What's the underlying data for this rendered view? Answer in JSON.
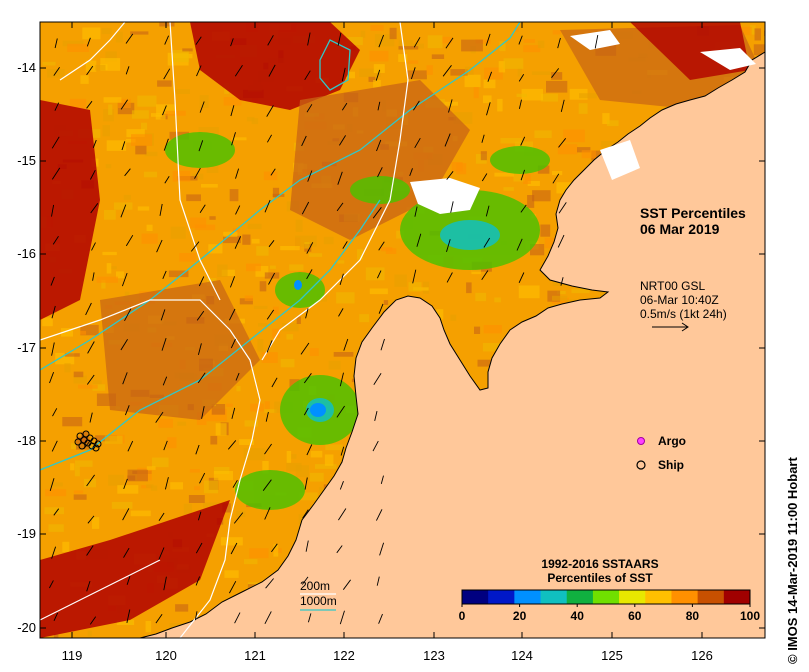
{
  "axes": {
    "lon_ticks": [
      "119",
      "120",
      "121",
      "122",
      "123",
      "124",
      "125",
      "126"
    ],
    "lat_ticks": [
      "-14",
      "-15",
      "-16",
      "-17",
      "-18",
      "-19",
      "-20"
    ]
  },
  "title": {
    "line1": "SST Percentiles",
    "line2": "06 Mar 2019"
  },
  "wind_info": {
    "line1": "NRT00 GSL",
    "line2": "06-Mar 10:40Z",
    "line3": "0.5m/s (1kt 24h)"
  },
  "markers": {
    "argo_label": "Argo",
    "ship_label": "Ship"
  },
  "contours": {
    "c200_label": "200m",
    "c1000_label": "1000m"
  },
  "colorbar": {
    "title_line1": "1992-2016 SSTAARS",
    "title_line2": "Percentiles of SST",
    "tick_labels": [
      "0",
      "20",
      "40",
      "60",
      "80",
      "100"
    ],
    "colors": [
      "#000080",
      "#0018c8",
      "#0090ff",
      "#10c0c0",
      "#10b040",
      "#70e000",
      "#e8e800",
      "#ffc000",
      "#ff9000",
      "#c85000",
      "#a00000"
    ]
  },
  "credit": "© IMOS 14-Mar-2019 11:00 Hobart",
  "colors": {
    "land": "#ffc89a",
    "ocean_base": "#f5a000",
    "warm_dark": "#b00000",
    "brown": "#c86414",
    "contour_200": "#30c8c8",
    "contour_1000": "#ffffff"
  }
}
